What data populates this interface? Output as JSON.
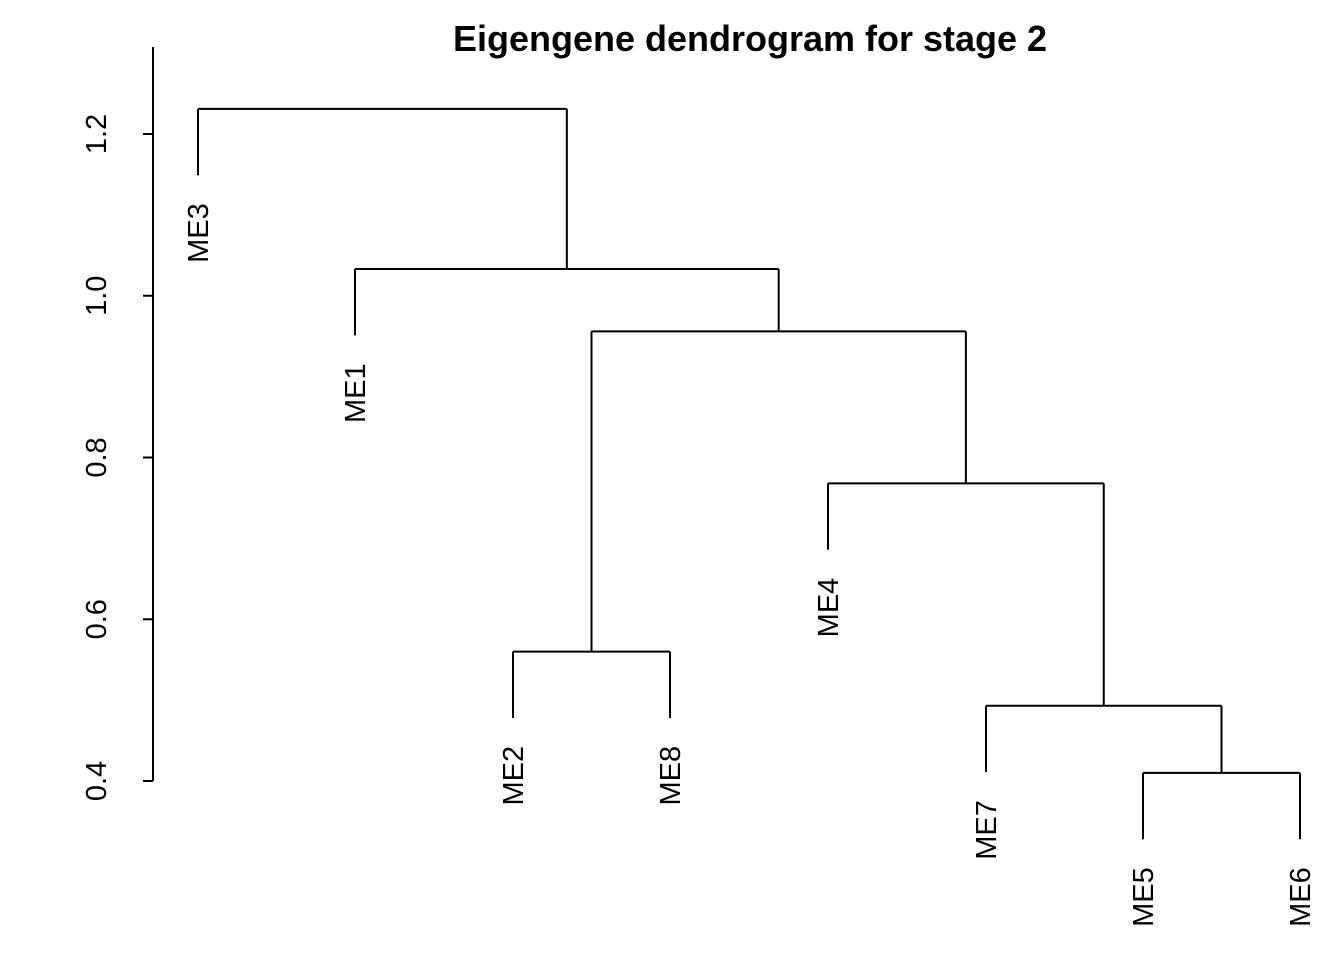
{
  "chart_data": {
    "type": "dendrogram",
    "title": "Eigengene dendrogram for stage  2",
    "ylabel": "",
    "xlabel": "",
    "ylim": [
      0.4,
      1.25
    ],
    "yticks": [
      0.4,
      0.6,
      0.8,
      1.0,
      1.2
    ],
    "ytick_labels": [
      "0.4",
      "0.6",
      "0.8",
      "1.0",
      "1.2"
    ],
    "leaves": [
      "ME3",
      "ME1",
      "ME2",
      "ME8",
      "ME4",
      "ME7",
      "ME5",
      "ME6"
    ],
    "merges": [
      {
        "left": "ME5",
        "right": "ME6",
        "height": 0.41
      },
      {
        "left": "ME7",
        "right": "ME5+ME6",
        "height": 0.493
      },
      {
        "left": "ME2",
        "right": "ME8",
        "height": 0.56
      },
      {
        "left": "ME4",
        "right": "ME7+ME5+ME6",
        "height": 0.768
      },
      {
        "left": "ME2+ME8",
        "right": "ME4+ME7+ME5+ME6",
        "height": 0.956
      },
      {
        "left": "ME1",
        "right": "ME2+ME8+ME4+ME7+ME5+ME6",
        "height": 1.033
      },
      {
        "left": "ME3",
        "right": "rest",
        "height": 1.231
      }
    ]
  }
}
